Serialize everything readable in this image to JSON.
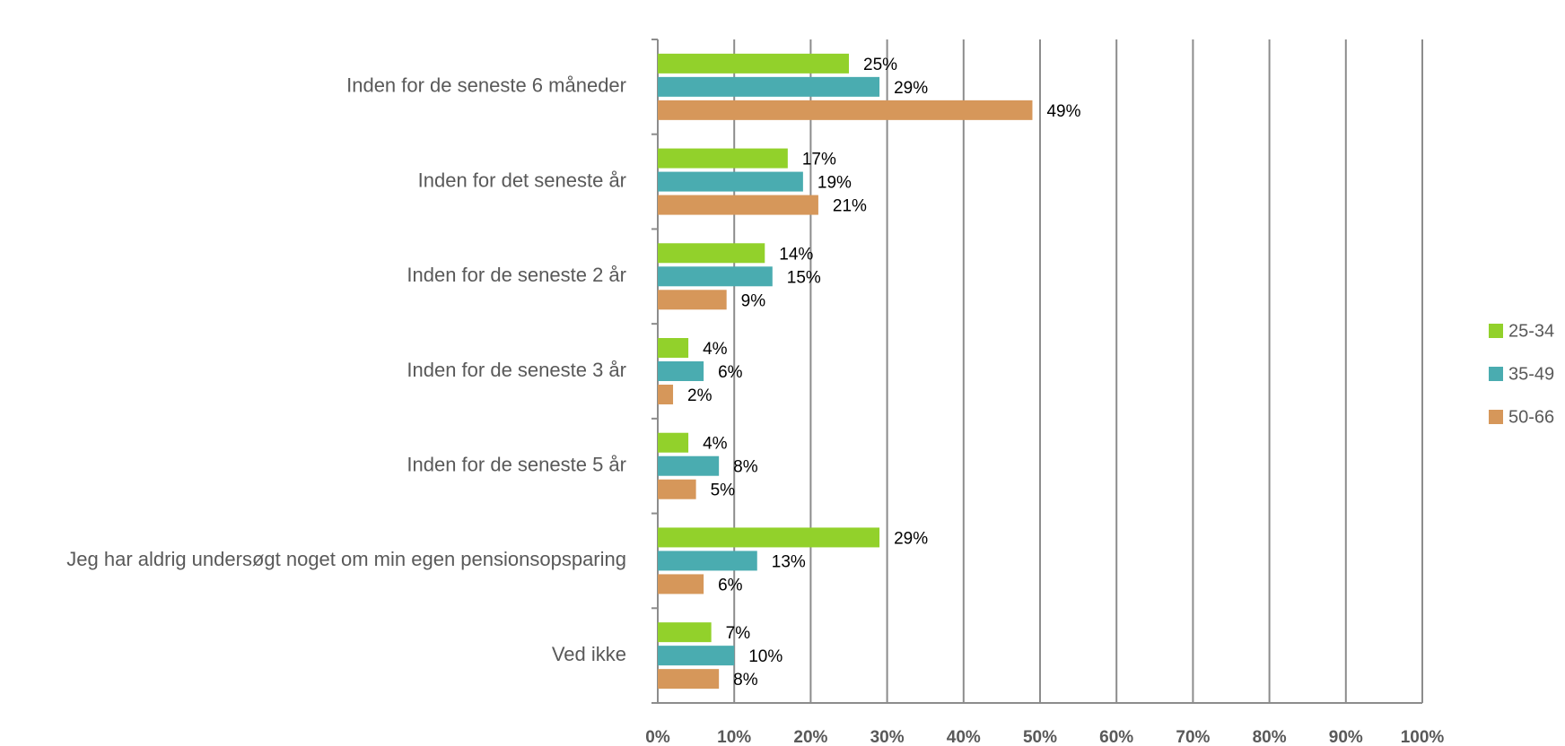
{
  "chart_data": {
    "type": "hbar",
    "categories": [
      "Inden for de seneste 6 måneder",
      "Inden for det seneste år",
      "Inden for de seneste 2 år",
      "Inden for de seneste 3 år",
      "Inden for de seneste 5 år",
      "Jeg har aldrig undersøgt noget om min egen pensionsopsparing",
      "Ved ikke"
    ],
    "series": [
      {
        "name": "25-34",
        "color": "#92d12b",
        "values": [
          25,
          17,
          14,
          4,
          4,
          29,
          7
        ],
        "value_labels": [
          "25%",
          "17%",
          "14%",
          "4%",
          "4%",
          "29%",
          "7%"
        ]
      },
      {
        "name": "35-49",
        "color": "#4aacb0",
        "values": [
          29,
          19,
          15,
          6,
          8,
          13,
          10
        ],
        "value_labels": [
          "29%",
          "19%",
          "15%",
          "6%",
          "8%",
          "13%",
          "10%"
        ]
      },
      {
        "name": "50-66",
        "color": "#d6975a",
        "values": [
          49,
          21,
          9,
          2,
          5,
          6,
          8
        ],
        "value_labels": [
          "49%",
          "21%",
          "9%",
          "2%",
          "5%",
          "6%",
          "8%"
        ]
      }
    ],
    "xlim": [
      0,
      100
    ],
    "xticks": [
      {
        "value": 0,
        "label": "0%"
      },
      {
        "value": 10,
        "label": "10%"
      },
      {
        "value": 20,
        "label": "20%"
      },
      {
        "value": 30,
        "label": "30%"
      },
      {
        "value": 40,
        "label": "40%"
      },
      {
        "value": 50,
        "label": "50%"
      },
      {
        "value": 60,
        "label": "60%"
      },
      {
        "value": 70,
        "label": "70%"
      },
      {
        "value": 80,
        "label": "80%"
      },
      {
        "value": 90,
        "label": "90%"
      },
      {
        "value": 100,
        "label": "100%"
      }
    ],
    "grid": true,
    "legend": "right"
  }
}
